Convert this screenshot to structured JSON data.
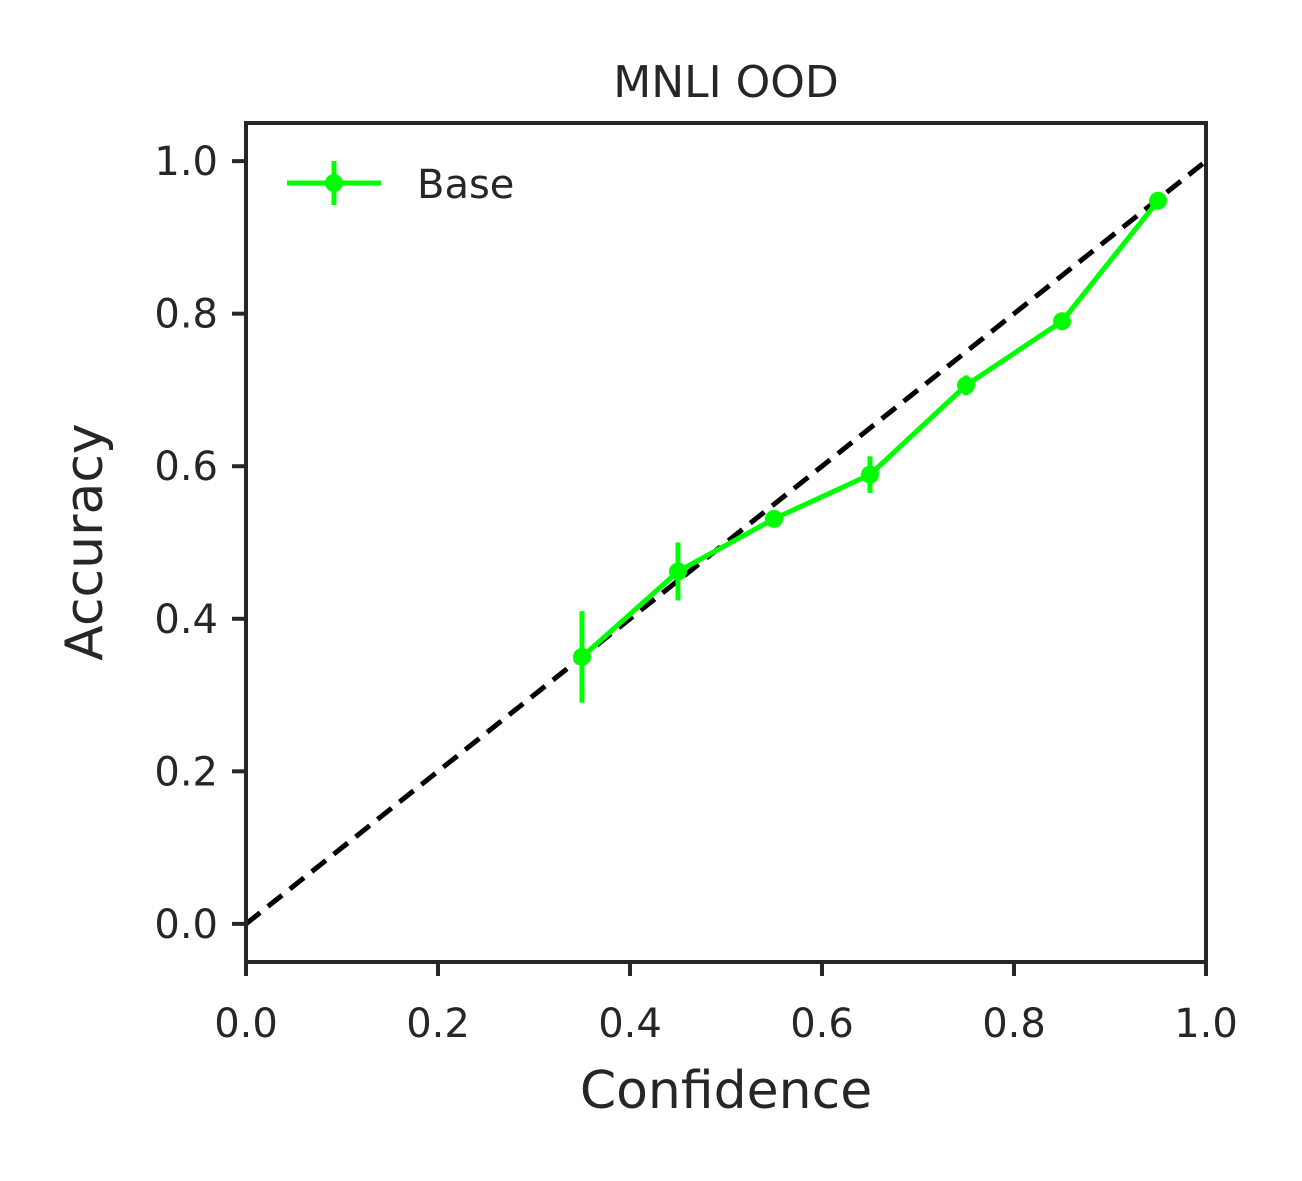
{
  "chart_data": {
    "type": "line",
    "title": "MNLI OOD",
    "xlabel": "Confidence",
    "ylabel": "Accuracy",
    "xlim": [
      0.0,
      1.0
    ],
    "ylim": [
      -0.05,
      1.05
    ],
    "xticks": [
      "0.0",
      "0.2",
      "0.4",
      "0.6",
      "0.8",
      "1.0"
    ],
    "yticks": [
      "0.0",
      "0.2",
      "0.4",
      "0.6",
      "0.8",
      "1.0"
    ],
    "grid": false,
    "legend": {
      "placement": "top-left"
    },
    "reference_line": {
      "style": "dashed",
      "color": "#000000",
      "x": [
        0.0,
        1.0
      ],
      "y": [
        0.0,
        1.0
      ]
    },
    "series": [
      {
        "name": "Base",
        "color": "#00ff00",
        "x": [
          0.35,
          0.45,
          0.55,
          0.65,
          0.75,
          0.85,
          0.95
        ],
        "y": [
          0.35,
          0.462,
          0.531,
          0.589,
          0.706,
          0.79,
          0.948
        ],
        "yerr": [
          0.06,
          0.038,
          0.008,
          0.024,
          0.013,
          0.008,
          0.006
        ]
      }
    ]
  }
}
